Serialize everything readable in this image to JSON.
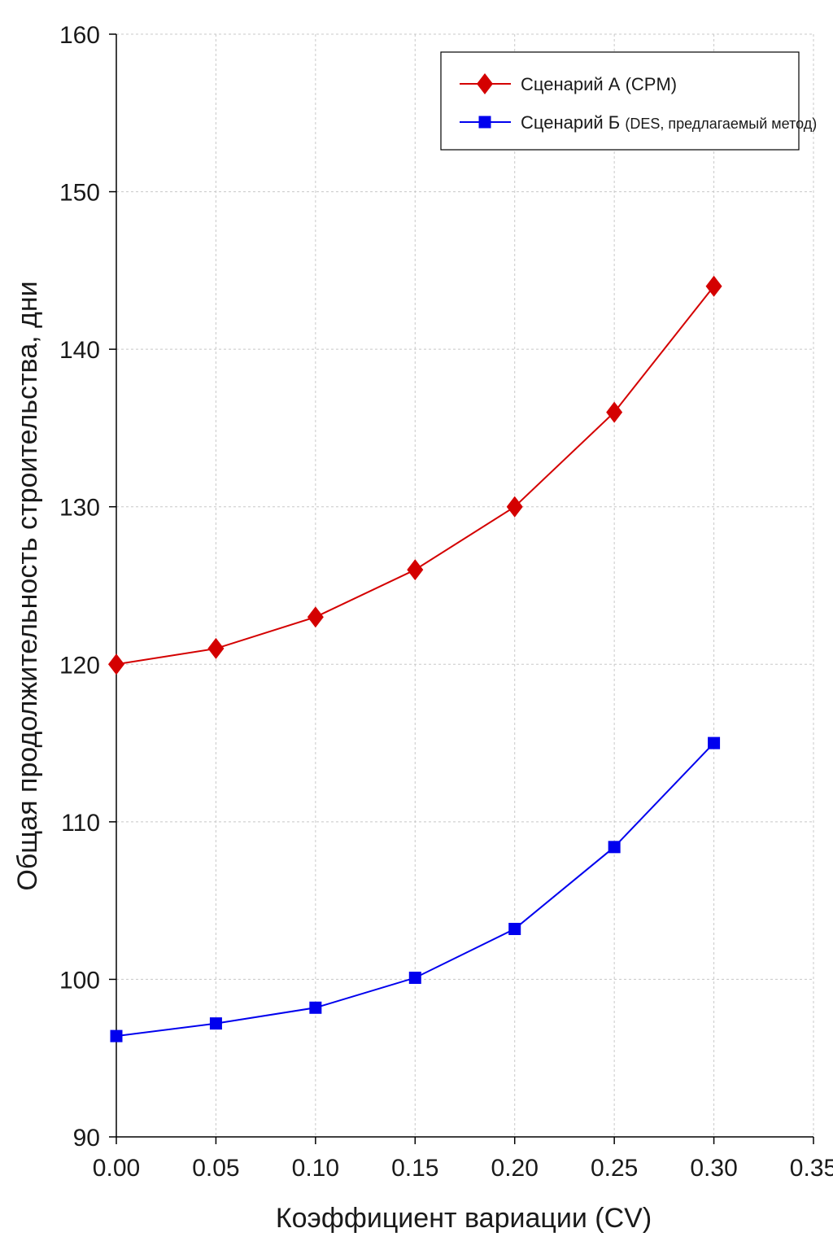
{
  "chart_data": {
    "type": "line",
    "title": "",
    "xlabel": "Коэффициент вариации (CV)",
    "ylabel": "Общая продолжительность строительства, дни",
    "xlim": [
      0.0,
      0.35
    ],
    "ylim": [
      90,
      160
    ],
    "x_ticks": [
      "0.00",
      "0.05",
      "0.10",
      "0.15",
      "0.20",
      "0.25",
      "0.30",
      "0.35"
    ],
    "y_ticks": [
      "90",
      "100",
      "110",
      "120",
      "130",
      "140",
      "150",
      "160"
    ],
    "grid": true,
    "legend_position": "top-right",
    "x": [
      0.0,
      0.05,
      0.1,
      0.15,
      0.2,
      0.25,
      0.3
    ],
    "series": [
      {
        "name": "Сценарий А (CPM)",
        "name_main": "Сценарий А (CPM)",
        "name_sub": "",
        "color": "#d40000",
        "marker": "diamond",
        "values": [
          120.0,
          121.0,
          123.0,
          126.0,
          130.0,
          136.0,
          144.0
        ]
      },
      {
        "name": "Сценарий Б (DES, предлагаемый метод)",
        "name_main": "Сценарий Б ",
        "name_sub": "(DES, предлагаемый метод)",
        "color": "#0000ee",
        "marker": "square",
        "values": [
          96.4,
          97.2,
          98.2,
          100.1,
          103.2,
          108.4,
          115.0
        ]
      }
    ]
  }
}
